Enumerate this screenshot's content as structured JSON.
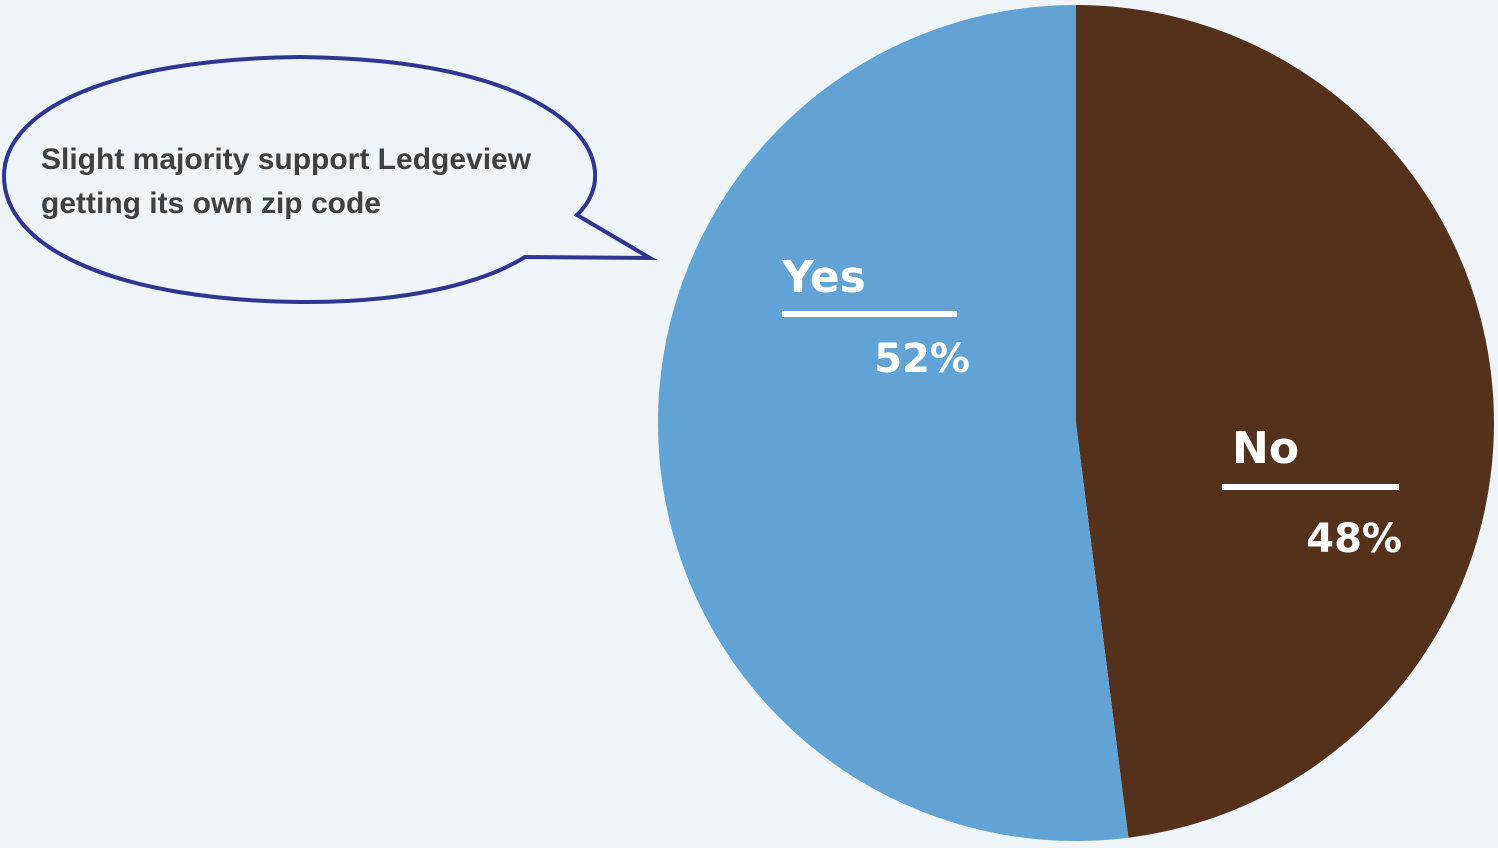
{
  "callout": {
    "lines": [
      "Slight majority support Ledgeview",
      "getting its own zip code"
    ]
  },
  "chart_data": {
    "type": "pie",
    "slices": [
      {
        "label": "No",
        "value": 48,
        "value_label": "48%",
        "color": "#53311b"
      },
      {
        "label": "Yes",
        "value": 52,
        "value_label": "52%",
        "color": "#62a3d5"
      }
    ],
    "start": "12 o'clock",
    "direction": "clockwise",
    "label_color": "#ffffff",
    "callout_border_color": "#2e3691",
    "callout_text_color": "#404040",
    "background_color": "#eff4f9"
  }
}
